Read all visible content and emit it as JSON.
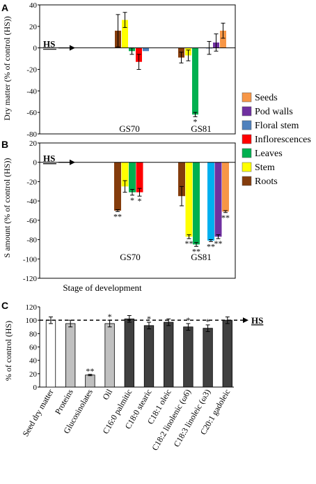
{
  "chart_data": [
    {
      "panel_label": "A",
      "type": "bar",
      "ylabel": "Dry matter (% of control (HS))",
      "ylim": [
        -80,
        40
      ],
      "yticks": [
        40,
        20,
        0,
        -20,
        -40,
        -60,
        -80
      ],
      "groups": [
        "GS70",
        "GS81"
      ],
      "reference_label": "HS",
      "series_order": [
        "Roots",
        "Stem",
        "Leaves",
        "Inflorescences",
        "Floral stem",
        "Pod walls",
        "Seeds"
      ],
      "bars": [
        {
          "group": "GS70",
          "series": "Roots",
          "value": 16,
          "err": 15,
          "sig": ""
        },
        {
          "group": "GS70",
          "series": "Stem",
          "value": 26,
          "err": 7,
          "sig": ""
        },
        {
          "group": "GS70",
          "series": "Leaves",
          "value": -3,
          "err": 3,
          "sig": ""
        },
        {
          "group": "GS70",
          "series": "Inflorescences",
          "value": -13,
          "err": 7,
          "sig": ""
        },
        {
          "group": "GS70",
          "series": "Floral stem",
          "value": -3,
          "err": 0,
          "sig": ""
        },
        {
          "group": "GS81",
          "series": "Roots",
          "value": -9,
          "err": 5,
          "sig": ""
        },
        {
          "group": "GS81",
          "series": "Stem",
          "value": -7,
          "err": 5,
          "sig": ""
        },
        {
          "group": "GS81",
          "series": "Leaves",
          "value": -62,
          "err": 2,
          "sig": "*"
        },
        {
          "group": "GS81",
          "series": "Floral stem",
          "value": 0,
          "err": 6,
          "sig": ""
        },
        {
          "group": "GS81",
          "series": "Pod walls",
          "value": 5,
          "err": 8,
          "sig": ""
        },
        {
          "group": "GS81",
          "series": "Seeds",
          "value": 16,
          "err": 7,
          "sig": ""
        }
      ]
    },
    {
      "panel_label": "B",
      "type": "bar",
      "ylabel": "S amount (% of control (HS))",
      "xlabel": "Stage of development",
      "ylim": [
        -120,
        20
      ],
      "yticks": [
        20,
        0,
        -20,
        -40,
        -60,
        -80,
        -100,
        -120
      ],
      "groups": [
        "GS70",
        "GS81"
      ],
      "reference_label": "HS",
      "bars": [
        {
          "group": "GS70",
          "series": "Roots",
          "value": -50,
          "err": 1,
          "sig": "**"
        },
        {
          "group": "GS70",
          "series": "Stem",
          "value": -25,
          "err": 6,
          "sig": ""
        },
        {
          "group": "GS70",
          "series": "Leaves",
          "value": -31,
          "err": 3,
          "sig": "*"
        },
        {
          "group": "GS70",
          "series": "Inflorescences",
          "value": -31,
          "err": 4,
          "sig": "*"
        },
        {
          "group": "GS81",
          "series": "Roots",
          "value": -35,
          "err": 10,
          "sig": ""
        },
        {
          "group": "GS81",
          "series": "Stem",
          "value": -77,
          "err": 2,
          "sig": "**"
        },
        {
          "group": "GS81",
          "series": "Leaves",
          "value": -85,
          "err": 2,
          "sig": "**"
        },
        {
          "group": "GS81",
          "series": "Floral stem",
          "value": -81,
          "err": 1,
          "sig": "**"
        },
        {
          "group": "GS81",
          "series": "Pod walls",
          "value": -77,
          "err": 2,
          "sig": "**"
        },
        {
          "group": "GS81",
          "series": "Seeds",
          "value": -51,
          "err": 1,
          "sig": "**"
        }
      ]
    },
    {
      "panel_label": "C",
      "type": "bar",
      "ylabel": "% of control (HS)",
      "ylim": [
        0,
        120
      ],
      "yticks": [
        120,
        100,
        80,
        60,
        40,
        20,
        0
      ],
      "reference_value": 100,
      "reference_label": "HS",
      "categories": [
        "Seed dry matter",
        "Proteins",
        "Glucosinolates",
        "Oil",
        "C16:0 palmitic",
        "C18:0 stearic",
        "C18:1 oleic",
        "C18:2 linolenic (ω6)",
        "C18:3 linoleic (ω3)",
        "C20:1 gadoleic"
      ],
      "values": [
        100,
        95,
        18,
        95,
        102,
        92,
        97,
        90,
        88,
        100
      ],
      "errors": [
        5,
        5,
        1,
        5,
        5,
        5,
        5,
        5,
        5,
        5
      ],
      "sig": [
        "",
        "",
        "**",
        "*",
        "",
        "*",
        "",
        "*",
        "*",
        ""
      ],
      "fills": [
        "#ffffff",
        "#c0c0c0",
        "#c0c0c0",
        "#c0c0c0",
        "#404040",
        "#404040",
        "#404040",
        "#404040",
        "#404040",
        "#404040"
      ]
    }
  ],
  "legend": {
    "items": [
      {
        "label": "Seeds",
        "color": "#f79646"
      },
      {
        "label": "Pod walls",
        "color": "#7030a0"
      },
      {
        "label": "Floral stem",
        "color": "#4f81bd"
      },
      {
        "label": "Inflorescences",
        "color": "#ff0000"
      },
      {
        "label": "Leaves",
        "color": "#00b050"
      },
      {
        "label": "Stem",
        "color": "#ffff00"
      },
      {
        "label": "Roots",
        "color": "#843c0c"
      }
    ]
  },
  "series_colors_b": {
    "Roots": "#843c0c",
    "Stem": "#ffff00",
    "Leaves": "#00b050",
    "Inflorescences": "#ff0000",
    "Floral stem": "#00b0f0",
    "Pod walls": "#7030a0",
    "Seeds": "#f79646"
  },
  "series_colors_a": {
    "Roots": "#843c0c",
    "Stem": "#ffff00",
    "Leaves": "#00b050",
    "Inflorescences": "#ff0000",
    "Floral stem": "#4f81bd",
    "Pod walls": "#7030a0",
    "Seeds": "#f79646"
  }
}
